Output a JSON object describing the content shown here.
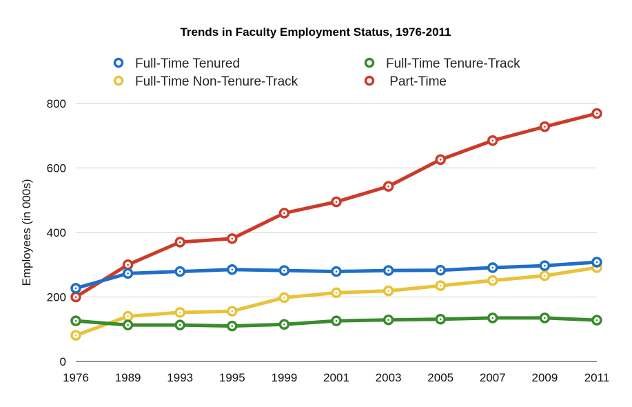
{
  "chart_data": {
    "type": "line",
    "title": "Trends in Faculty Employment Status, 1976-2011",
    "xlabel": "",
    "ylabel": "Employees (in 000s)",
    "ylim": [
      0,
      800
    ],
    "yticks": [
      "0",
      "200",
      "400",
      "600",
      "800"
    ],
    "grid": true,
    "legend_position": "top",
    "categories": [
      "1976",
      "1989",
      "1993",
      "1995",
      "1999",
      "2001",
      "2003",
      "2005",
      "2007",
      "2009",
      "2011"
    ],
    "series": [
      {
        "name": "Full-Time Tenured",
        "color": "#1f6ec8",
        "values": [
          227,
          273,
          279,
          285,
          282,
          279,
          282,
          283,
          291,
          297,
          308
        ]
      },
      {
        "name": "Full-Time Tenure-Track",
        "color": "#3a8a2e",
        "values": [
          126,
          113,
          113,
          110,
          115,
          126,
          129,
          131,
          135,
          135,
          128
        ]
      },
      {
        "name": "Full-Time Non-Tenure-Track",
        "color": "#e8c23a",
        "values": [
          81,
          140,
          152,
          156,
          198,
          213,
          219,
          235,
          251,
          266,
          291
        ]
      },
      {
        "name": " Part-Time",
        "color": "#cc3b2a",
        "values": [
          200,
          300,
          370,
          381,
          460,
          495,
          543,
          626,
          685,
          728,
          769
        ]
      }
    ]
  }
}
